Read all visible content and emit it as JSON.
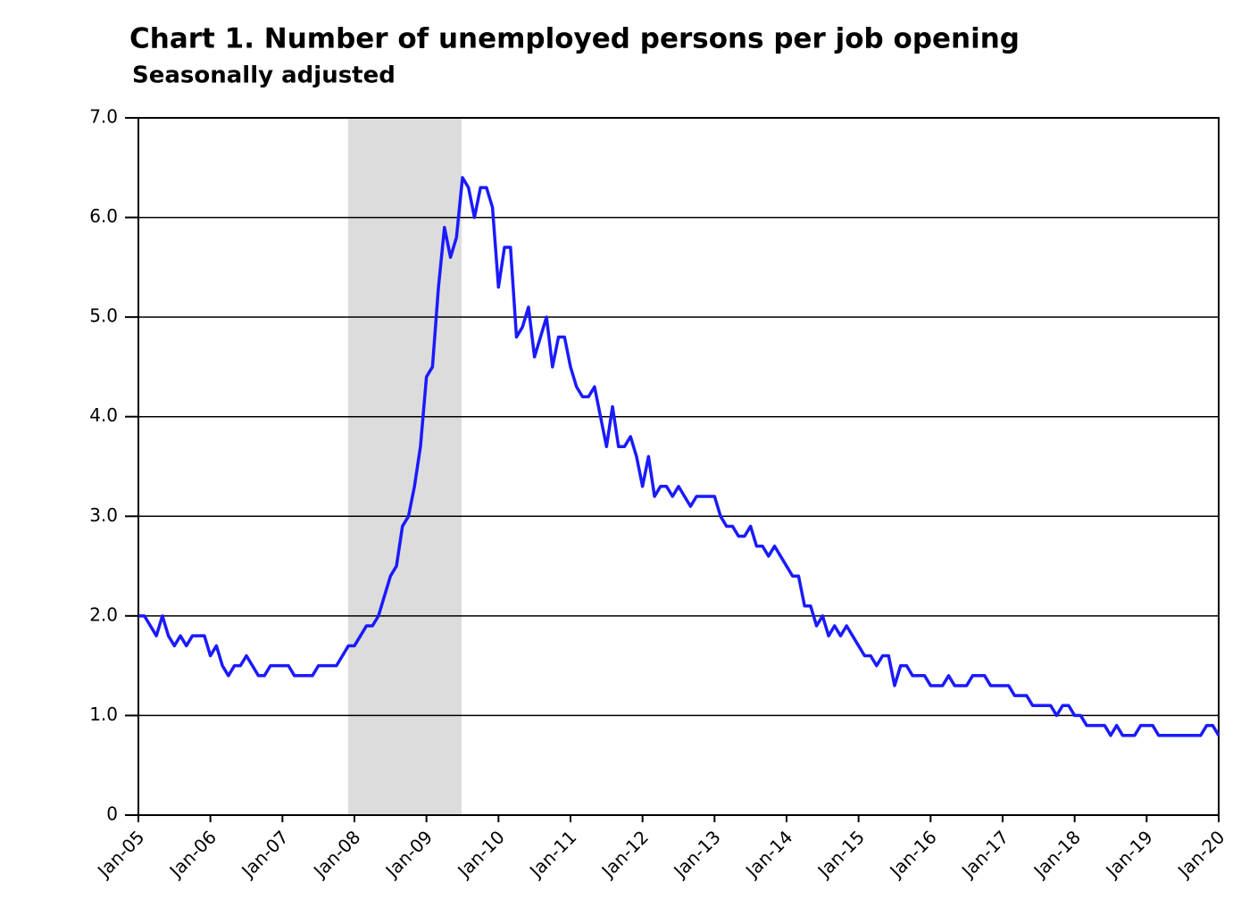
{
  "chart_data": {
    "type": "line",
    "title": "Chart 1. Number of unemployed persons per job opening",
    "subtitle": "Seasonally adjusted",
    "categories": [
      "Jan-05",
      null,
      null,
      null,
      null,
      null,
      null,
      null,
      null,
      null,
      null,
      null,
      "Jan-06",
      null,
      null,
      null,
      null,
      null,
      null,
      null,
      null,
      null,
      null,
      null,
      "Jan-07",
      null,
      null,
      null,
      null,
      null,
      null,
      null,
      null,
      null,
      null,
      null,
      "Jan-08",
      null,
      null,
      null,
      null,
      null,
      null,
      null,
      null,
      null,
      null,
      null,
      "Jan-09",
      null,
      null,
      null,
      null,
      null,
      null,
      null,
      null,
      null,
      null,
      null,
      "Jan-10",
      null,
      null,
      null,
      null,
      null,
      null,
      null,
      null,
      null,
      null,
      null,
      "Jan-11",
      null,
      null,
      null,
      null,
      null,
      null,
      null,
      null,
      null,
      null,
      null,
      "Jan-12",
      null,
      null,
      null,
      null,
      null,
      null,
      null,
      null,
      null,
      null,
      null,
      "Jan-13",
      null,
      null,
      null,
      null,
      null,
      null,
      null,
      null,
      null,
      null,
      null,
      "Jan-14",
      null,
      null,
      null,
      null,
      null,
      null,
      null,
      null,
      null,
      null,
      null,
      "Jan-15",
      null,
      null,
      null,
      null,
      null,
      null,
      null,
      null,
      null,
      null,
      null,
      "Jan-16",
      null,
      null,
      null,
      null,
      null,
      null,
      null,
      null,
      null,
      null,
      null,
      "Jan-17",
      null,
      null,
      null,
      null,
      null,
      null,
      null,
      null,
      null,
      null,
      null,
      "Jan-18",
      null,
      null,
      null,
      null,
      null,
      null,
      null,
      null,
      null,
      null,
      null,
      "Jan-19",
      null,
      null,
      null,
      null,
      null,
      null,
      null,
      null,
      null,
      null,
      null,
      "Jan-20"
    ],
    "values": [
      2.0,
      2.0,
      1.9,
      1.8,
      2.0,
      1.8,
      1.7,
      1.8,
      1.7,
      1.8,
      1.8,
      1.8,
      1.6,
      1.7,
      1.5,
      1.4,
      1.5,
      1.5,
      1.6,
      1.5,
      1.4,
      1.4,
      1.5,
      1.5,
      1.5,
      1.5,
      1.4,
      1.4,
      1.4,
      1.4,
      1.5,
      1.5,
      1.5,
      1.5,
      1.6,
      1.7,
      1.7,
      1.8,
      1.9,
      1.9,
      2.0,
      2.2,
      2.4,
      2.5,
      2.9,
      3.0,
      3.3,
      3.7,
      4.4,
      4.5,
      5.3,
      5.9,
      5.6,
      5.8,
      6.4,
      6.3,
      6.0,
      6.3,
      6.3,
      6.1,
      5.3,
      5.7,
      5.7,
      4.8,
      4.9,
      5.1,
      4.6,
      4.8,
      5.0,
      4.5,
      4.8,
      4.8,
      4.5,
      4.3,
      4.2,
      4.2,
      4.3,
      4.0,
      3.7,
      4.1,
      3.7,
      3.7,
      3.8,
      3.6,
      3.3,
      3.6,
      3.2,
      3.3,
      3.3,
      3.2,
      3.3,
      3.2,
      3.1,
      3.2,
      3.2,
      3.2,
      3.2,
      3.0,
      2.9,
      2.9,
      2.8,
      2.8,
      2.9,
      2.7,
      2.7,
      2.6,
      2.7,
      2.6,
      2.5,
      2.4,
      2.4,
      2.1,
      2.1,
      1.9,
      2.0,
      1.8,
      1.9,
      1.8,
      1.9,
      1.8,
      1.7,
      1.6,
      1.6,
      1.5,
      1.6,
      1.6,
      1.3,
      1.5,
      1.5,
      1.4,
      1.4,
      1.4,
      1.3,
      1.3,
      1.3,
      1.4,
      1.3,
      1.3,
      1.3,
      1.4,
      1.4,
      1.4,
      1.3,
      1.3,
      1.3,
      1.3,
      1.2,
      1.2,
      1.2,
      1.1,
      1.1,
      1.1,
      1.1,
      1.0,
      1.1,
      1.1,
      1.0,
      1.0,
      0.9,
      0.9,
      0.9,
      0.9,
      0.8,
      0.9,
      0.8,
      0.8,
      0.8,
      0.9,
      0.9,
      0.9,
      0.8,
      0.8,
      0.8,
      0.8,
      0.8,
      0.8,
      0.8,
      0.8,
      0.9,
      0.9,
      0.8
    ],
    "color": "#1a1aff",
    "ylim": [
      0,
      7
    ],
    "yticks": [
      0,
      {
        "value": 1,
        "label": "1.0"
      },
      {
        "value": 2,
        "label": "2.0"
      },
      {
        "value": 3,
        "label": "3.0"
      },
      {
        "value": 4,
        "label": "4.0"
      },
      {
        "value": 5,
        "label": "5.0"
      },
      {
        "value": 6,
        "label": "6.0"
      },
      {
        "value": 7,
        "label": "7.0"
      }
    ],
    "grid": true
  }
}
